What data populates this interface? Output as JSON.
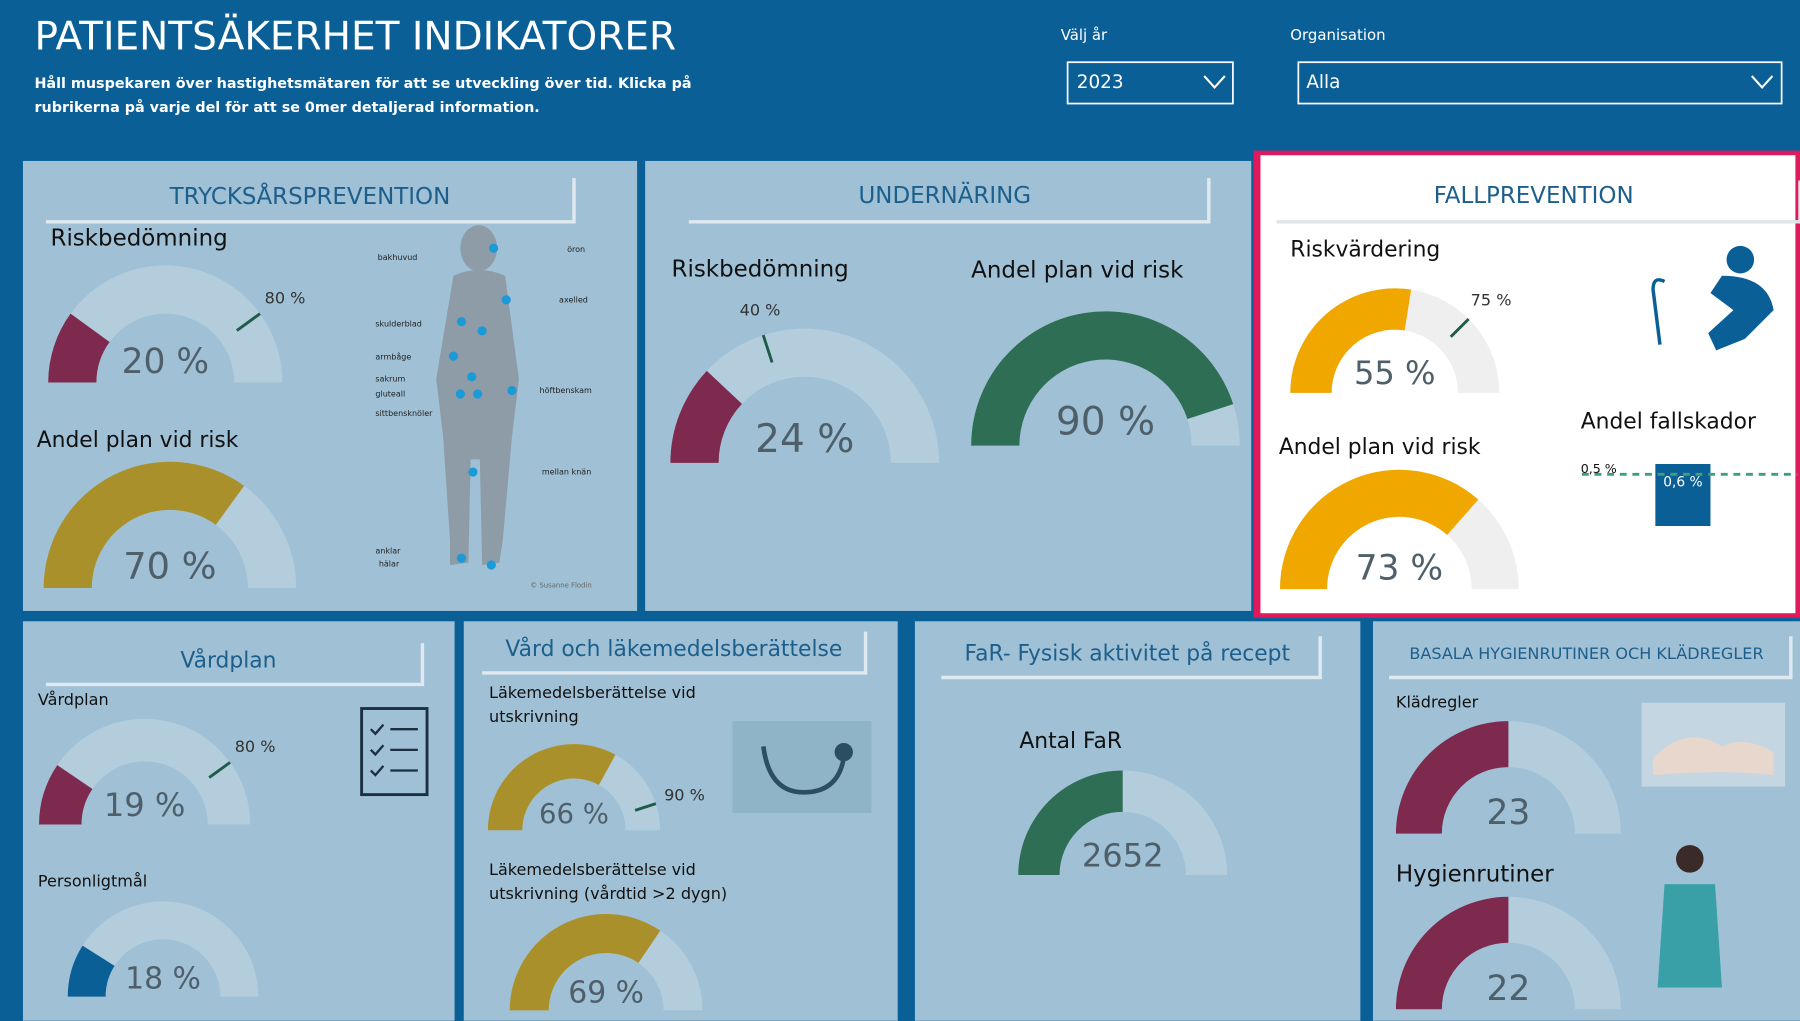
{
  "header": {
    "title": "PATIENTSÄKERHET INDIKATORER",
    "subtitle": [
      "Håll muspekaren över hastighetsmätaren för att se utveckling över tid. Klicka på",
      "rubrikerna på varje del för att se 0mer detaljerad information."
    ],
    "year_label": "Välj år",
    "year": "2023",
    "org_label": "Organisation",
    "org": "Alla"
  },
  "panels": [
    {
      "title": "TRYCKSÅRSPREVENTION",
      "gauges": [
        {
          "label": [
            "Riskbedömning"
          ],
          "value": 20,
          "value_label": "20 %",
          "target": 80,
          "target_label": "80 %"
        },
        {
          "label": [
            "Andel plan vid risk"
          ],
          "value": 70,
          "value_label": "70 %"
        }
      ],
      "figure_labels": [
        "bakhuvud",
        "öron",
        "skulderblad",
        "axelled",
        "armbåge",
        "sakrum",
        "gluteall",
        "höftbenskam",
        "sittbensknöler",
        "mellan knän",
        "anklar",
        "hälar"
      ],
      "credit": "© Susanne Flodin"
    },
    {
      "title": "UNDERNÄRING",
      "gauges": [
        {
          "label": [
            "Riskbedömning"
          ],
          "value": 24,
          "value_label": "24 %",
          "target": 40,
          "target_label": "40 %"
        },
        {
          "label": [
            "Andel plan vid risk"
          ],
          "value": 90,
          "value_label": "90 %"
        }
      ]
    },
    {
      "title": "FALLPREVENTION",
      "gauges": [
        {
          "label": [
            "Riskvärdering"
          ],
          "value": 55,
          "value_label": "55 %",
          "target": 75,
          "target_label": "75 %"
        },
        {
          "label": [
            "Andel plan vid risk"
          ],
          "value": 73,
          "value_label": "73 %"
        }
      ],
      "bar": {
        "label": "Andel fallskador",
        "value": 0.6,
        "value_label": "0,6 %",
        "target": 0.5,
        "target_label": "0,5 %"
      }
    },
    {
      "title": "Vårdplan",
      "gauges": [
        {
          "label": [
            "Vårdplan"
          ],
          "value": 19,
          "value_label": "19 %",
          "target": 80,
          "target_label": "80 %"
        },
        {
          "label": [
            "Personligtmål"
          ],
          "value": 18,
          "value_label": "18 %"
        }
      ]
    },
    {
      "title": "Vård och läkemedelsberättelse",
      "gauges": [
        {
          "label": [
            "Läkemedelsberättelse vid",
            "utskrivning"
          ],
          "value": 66,
          "value_label": "66 %",
          "target": 90,
          "target_label": "90 %"
        },
        {
          "label": [
            "Läkemedelsberättelse vid",
            "utskrivning (vårdtid >2 dygn)"
          ],
          "value": 69,
          "value_label": "69 %"
        }
      ]
    },
    {
      "title": "FaR- Fysisk aktivitet på recept",
      "gauges": [
        {
          "label": [
            "Antal FaR"
          ],
          "value": 2652
        }
      ]
    },
    {
      "title": "BASALA HYGIENRUTINER OCH KLÄDREGLER",
      "gauges": [
        {
          "label": [
            "Klädregler"
          ],
          "value": 23
        },
        {
          "label": [
            "Hygienrutiner"
          ],
          "value": 22
        }
      ]
    }
  ]
}
